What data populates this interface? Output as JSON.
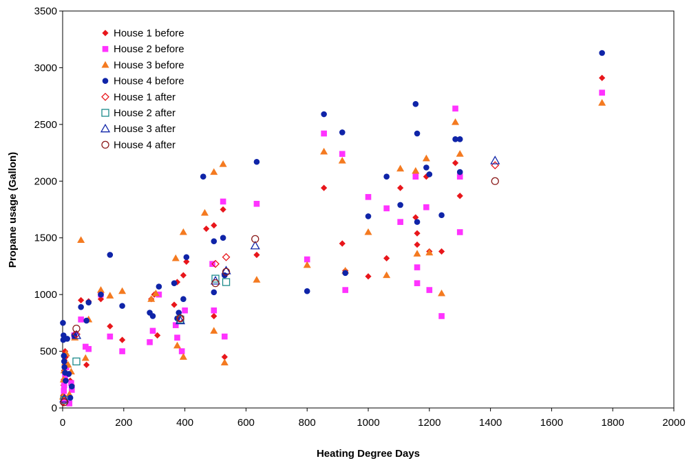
{
  "chart_data": {
    "type": "scatter",
    "title": "",
    "xlabel": "Heating Degree Days",
    "ylabel": "Propane usage (Gallon)",
    "xlim": [
      0,
      2000
    ],
    "ylim": [
      0,
      3500
    ],
    "xticks": [
      0,
      200,
      400,
      600,
      800,
      1000,
      1200,
      1400,
      1600,
      1800,
      2000
    ],
    "yticks": [
      0,
      500,
      1000,
      1500,
      2000,
      2500,
      3000,
      3500
    ],
    "grid": false,
    "legend_position": "top-left",
    "series": [
      {
        "name": "House 1 before",
        "marker": "diamond-filled",
        "color": "#e8161b",
        "points": [
          [
            1,
            40
          ],
          [
            2,
            110
          ],
          [
            3,
            200
          ],
          [
            4,
            250
          ],
          [
            5,
            330
          ],
          [
            6,
            420
          ],
          [
            8,
            500
          ],
          [
            10,
            450
          ],
          [
            15,
            380
          ],
          [
            20,
            300
          ],
          [
            25,
            240
          ],
          [
            30,
            200
          ],
          [
            38,
            650
          ],
          [
            60,
            950
          ],
          [
            78,
            380
          ],
          [
            85,
            940
          ],
          [
            125,
            960
          ],
          [
            155,
            720
          ],
          [
            195,
            600
          ],
          [
            290,
            960
          ],
          [
            300,
            1000
          ],
          [
            310,
            640
          ],
          [
            365,
            910
          ],
          [
            375,
            1110
          ],
          [
            395,
            1170
          ],
          [
            405,
            1290
          ],
          [
            470,
            1580
          ],
          [
            495,
            1610
          ],
          [
            495,
            810
          ],
          [
            525,
            1750
          ],
          [
            530,
            450
          ],
          [
            635,
            1350
          ],
          [
            855,
            1940
          ],
          [
            915,
            1450
          ],
          [
            925,
            1210
          ],
          [
            1000,
            1160
          ],
          [
            1060,
            1320
          ],
          [
            1105,
            1940
          ],
          [
            1155,
            1680
          ],
          [
            1160,
            1540
          ],
          [
            1160,
            1440
          ],
          [
            1190,
            2040
          ],
          [
            1200,
            1380
          ],
          [
            1240,
            1380
          ],
          [
            1285,
            2160
          ],
          [
            1300,
            1870
          ],
          [
            1765,
            2910
          ]
        ]
      },
      {
        "name": "House 2 before",
        "marker": "square-filled",
        "color": "#ff33ff",
        "points": [
          [
            2,
            60
          ],
          [
            4,
            150
          ],
          [
            5,
            200
          ],
          [
            8,
            280
          ],
          [
            12,
            360
          ],
          [
            18,
            80
          ],
          [
            22,
            40
          ],
          [
            28,
            220
          ],
          [
            30,
            160
          ],
          [
            38,
            640
          ],
          [
            60,
            780
          ],
          [
            75,
            540
          ],
          [
            85,
            520
          ],
          [
            125,
            1000
          ],
          [
            155,
            630
          ],
          [
            195,
            500
          ],
          [
            285,
            580
          ],
          [
            295,
            680
          ],
          [
            315,
            1000
          ],
          [
            375,
            620
          ],
          [
            390,
            500
          ],
          [
            400,
            860
          ],
          [
            370,
            730
          ],
          [
            490,
            1270
          ],
          [
            495,
            860
          ],
          [
            525,
            1820
          ],
          [
            530,
            630
          ],
          [
            635,
            1800
          ],
          [
            800,
            1310
          ],
          [
            855,
            2420
          ],
          [
            915,
            2240
          ],
          [
            925,
            1040
          ],
          [
            1000,
            1860
          ],
          [
            1060,
            1760
          ],
          [
            1105,
            1640
          ],
          [
            1155,
            2040
          ],
          [
            1160,
            1240
          ],
          [
            1160,
            1100
          ],
          [
            1190,
            1770
          ],
          [
            1200,
            1040
          ],
          [
            1240,
            810
          ],
          [
            1285,
            2640
          ],
          [
            1300,
            1550
          ],
          [
            1300,
            2040
          ],
          [
            1765,
            2780
          ]
        ]
      },
      {
        "name": "House 3 before",
        "marker": "triangle-filled",
        "color": "#f47a20",
        "points": [
          [
            1,
            100
          ],
          [
            3,
            250
          ],
          [
            5,
            330
          ],
          [
            8,
            400
          ],
          [
            12,
            480
          ],
          [
            18,
            380
          ],
          [
            22,
            120
          ],
          [
            28,
            320
          ],
          [
            40,
            620
          ],
          [
            60,
            1480
          ],
          [
            75,
            440
          ],
          [
            85,
            780
          ],
          [
            125,
            1040
          ],
          [
            155,
            990
          ],
          [
            195,
            1030
          ],
          [
            290,
            960
          ],
          [
            305,
            1010
          ],
          [
            370,
            1320
          ],
          [
            375,
            550
          ],
          [
            395,
            1550
          ],
          [
            395,
            450
          ],
          [
            465,
            1720
          ],
          [
            495,
            2080
          ],
          [
            495,
            680
          ],
          [
            525,
            2150
          ],
          [
            530,
            400
          ],
          [
            635,
            1130
          ],
          [
            800,
            1260
          ],
          [
            855,
            2260
          ],
          [
            915,
            2180
          ],
          [
            925,
            1210
          ],
          [
            1000,
            1550
          ],
          [
            1060,
            1170
          ],
          [
            1105,
            2110
          ],
          [
            1155,
            2090
          ],
          [
            1160,
            1360
          ],
          [
            1190,
            2200
          ],
          [
            1200,
            1370
          ],
          [
            1240,
            1010
          ],
          [
            1285,
            2520
          ],
          [
            1300,
            2240
          ],
          [
            1765,
            2690
          ]
        ]
      },
      {
        "name": "House 4 before",
        "marker": "circle-filled",
        "color": "#0f24a8",
        "points": [
          [
            1,
            750
          ],
          [
            2,
            600
          ],
          [
            3,
            640
          ],
          [
            4,
            460
          ],
          [
            5,
            410
          ],
          [
            6,
            360
          ],
          [
            8,
            310
          ],
          [
            10,
            240
          ],
          [
            15,
            610
          ],
          [
            20,
            300
          ],
          [
            25,
            90
          ],
          [
            30,
            190
          ],
          [
            38,
            640
          ],
          [
            60,
            890
          ],
          [
            78,
            770
          ],
          [
            85,
            930
          ],
          [
            125,
            1000
          ],
          [
            155,
            1350
          ],
          [
            195,
            900
          ],
          [
            285,
            840
          ],
          [
            295,
            810
          ],
          [
            315,
            1070
          ],
          [
            365,
            1100
          ],
          [
            375,
            790
          ],
          [
            380,
            840
          ],
          [
            395,
            960
          ],
          [
            405,
            1330
          ],
          [
            460,
            2040
          ],
          [
            495,
            1470
          ],
          [
            495,
            1020
          ],
          [
            525,
            1500
          ],
          [
            530,
            1170
          ],
          [
            635,
            2170
          ],
          [
            800,
            1030
          ],
          [
            855,
            2590
          ],
          [
            915,
            2430
          ],
          [
            925,
            1190
          ],
          [
            1000,
            1690
          ],
          [
            1060,
            2040
          ],
          [
            1105,
            1790
          ],
          [
            1155,
            2680
          ],
          [
            1160,
            2420
          ],
          [
            1160,
            1640
          ],
          [
            1190,
            2120
          ],
          [
            1200,
            2060
          ],
          [
            1240,
            1700
          ],
          [
            1285,
            2370
          ],
          [
            1300,
            2370
          ],
          [
            1300,
            2080
          ],
          [
            1765,
            3130
          ]
        ]
      },
      {
        "name": "House 1 after",
        "marker": "diamond-open",
        "color": "#e8161b",
        "points": [
          [
            5,
            60
          ],
          [
            45,
            650
          ],
          [
            385,
            790
          ],
          [
            500,
            1270
          ],
          [
            535,
            1330
          ],
          [
            1415,
            2140
          ]
        ]
      },
      {
        "name": "House 2 after",
        "marker": "square-open",
        "color": "#1a8a8a",
        "points": [
          [
            5,
            70
          ],
          [
            45,
            410
          ],
          [
            385,
            780
          ],
          [
            500,
            1140
          ],
          [
            535,
            1110
          ]
        ]
      },
      {
        "name": "House 3 after",
        "marker": "triangle-open",
        "color": "#0f24a8",
        "points": [
          [
            5,
            80
          ],
          [
            45,
            640
          ],
          [
            385,
            770
          ],
          [
            500,
            1120
          ],
          [
            535,
            1210
          ],
          [
            630,
            1430
          ],
          [
            1415,
            2180
          ]
        ]
      },
      {
        "name": "House 4 after",
        "marker": "circle-open",
        "color": "#8b1a1a",
        "points": [
          [
            5,
            50
          ],
          [
            45,
            700
          ],
          [
            385,
            790
          ],
          [
            500,
            1100
          ],
          [
            535,
            1200
          ],
          [
            630,
            1490
          ],
          [
            1415,
            2000
          ]
        ]
      }
    ]
  }
}
